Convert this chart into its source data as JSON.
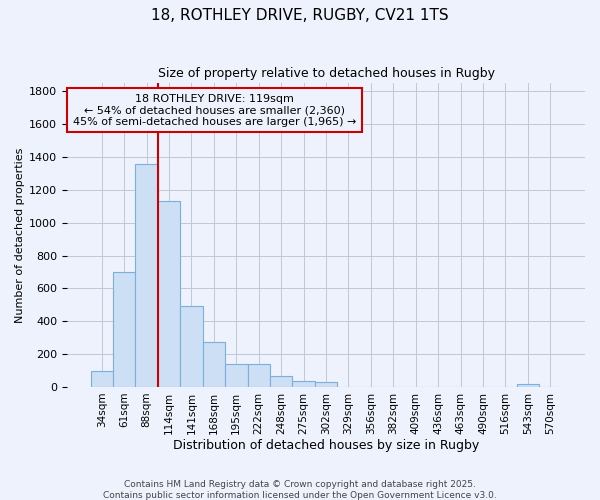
{
  "title": "18, ROTHLEY DRIVE, RUGBY, CV21 1TS",
  "subtitle": "Size of property relative to detached houses in Rugby",
  "xlabel": "Distribution of detached houses by size in Rugby",
  "ylabel": "Number of detached properties",
  "footer_line1": "Contains HM Land Registry data © Crown copyright and database right 2025.",
  "footer_line2": "Contains public sector information licensed under the Open Government Licence v3.0.",
  "bar_labels": [
    "34sqm",
    "61sqm",
    "88sqm",
    "114sqm",
    "141sqm",
    "168sqm",
    "195sqm",
    "222sqm",
    "248sqm",
    "275sqm",
    "302sqm",
    "329sqm",
    "356sqm",
    "382sqm",
    "409sqm",
    "436sqm",
    "463sqm",
    "490sqm",
    "516sqm",
    "543sqm",
    "570sqm"
  ],
  "bar_values": [
    98,
    700,
    1360,
    1130,
    490,
    275,
    140,
    140,
    65,
    38,
    30,
    0,
    0,
    0,
    0,
    0,
    0,
    0,
    0,
    18,
    0
  ],
  "bar_color": "#ccdff5",
  "bar_edge_color": "#7ab0dc",
  "ylim": [
    0,
    1850
  ],
  "yticks": [
    0,
    200,
    400,
    600,
    800,
    1000,
    1200,
    1400,
    1600,
    1800
  ],
  "vline_color": "#cc0000",
  "vline_bar_idx": 3,
  "annotation_text": "18 ROTHLEY DRIVE: 119sqm\n← 54% of detached houses are smaller (2,360)\n45% of semi-detached houses are larger (1,965) →",
  "background_color": "#eef2fc",
  "grid_color": "#c0c8d8",
  "title_fontsize": 11,
  "subtitle_fontsize": 9,
  "ylabel_fontsize": 8,
  "xlabel_fontsize": 9,
  "tick_fontsize": 8,
  "xtick_fontsize": 7.5,
  "footer_fontsize": 6.5,
  "ann_fontsize": 8
}
